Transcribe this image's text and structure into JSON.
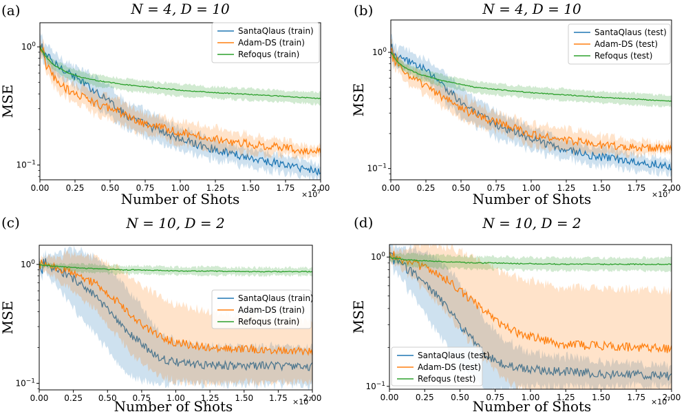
{
  "chart_data": [
    {
      "panel_label": "(a)",
      "type": "line",
      "title": "N = 4, D = 10",
      "xlabel": "Number of Shots",
      "ylabel": "MSE",
      "x_scale_label": "×10",
      "x_scale_exp": "7",
      "xlim": [
        0,
        2.0
      ],
      "ylim": [
        0.075,
        1.6
      ],
      "yscale": "log",
      "x_ticks": [
        "0.00",
        "0.25",
        "0.50",
        "0.75",
        "1.00",
        "1.25",
        "1.50",
        "1.75",
        "2.00"
      ],
      "x_tick_values": [
        0,
        0.25,
        0.5,
        0.75,
        1.0,
        1.25,
        1.5,
        1.75,
        2.0
      ],
      "y_ticks": [
        {
          "value": 1,
          "base": "10",
          "exp": "0"
        },
        {
          "value": 0.1,
          "base": "10",
          "exp": "−1"
        }
      ],
      "legend_position": "top-right",
      "x": [
        0,
        0.05,
        0.1,
        0.2,
        0.3,
        0.4,
        0.5,
        0.6,
        0.75,
        1.0,
        1.25,
        1.5,
        1.75,
        2.0
      ],
      "series": [
        {
          "name": "SantaQlaus (train)",
          "color": "#1f77b4",
          "values": [
            1.0,
            0.85,
            0.72,
            0.62,
            0.5,
            0.42,
            0.35,
            0.27,
            0.22,
            0.165,
            0.135,
            0.115,
            0.1,
            0.088
          ],
          "band": [
            1.25,
            1.2,
            1.25,
            1.2,
            1.25,
            1.35,
            1.35,
            1.3,
            1.3,
            1.25,
            1.2,
            1.2,
            1.18,
            1.15
          ]
        },
        {
          "name": "Adam-DS (train)",
          "color": "#ff7f0e",
          "values": [
            1.0,
            0.7,
            0.55,
            0.43,
            0.38,
            0.33,
            0.3,
            0.27,
            0.22,
            0.19,
            0.165,
            0.15,
            0.14,
            0.128
          ],
          "band": [
            1.2,
            1.15,
            1.2,
            1.2,
            1.2,
            1.25,
            1.25,
            1.25,
            1.2,
            1.25,
            1.25,
            1.2,
            1.15,
            1.1
          ]
        },
        {
          "name": "Refoqus (train)",
          "color": "#2ca02c",
          "values": [
            1.0,
            0.8,
            0.7,
            0.6,
            0.55,
            0.52,
            0.5,
            0.48,
            0.46,
            0.43,
            0.41,
            0.395,
            0.38,
            0.365
          ],
          "band": [
            1.05,
            1.08,
            1.1,
            1.12,
            1.12,
            1.12,
            1.12,
            1.12,
            1.12,
            1.12,
            1.12,
            1.12,
            1.12,
            1.12
          ]
        }
      ]
    },
    {
      "panel_label": "(b)",
      "type": "line",
      "title": "N = 4, D = 10",
      "xlabel": "Number of Shots",
      "ylabel": "MSE",
      "x_scale_label": "×10",
      "x_scale_exp": "7",
      "xlim": [
        0,
        2.0
      ],
      "ylim": [
        0.08,
        1.9
      ],
      "yscale": "log",
      "x_ticks": [
        "0.00",
        "0.25",
        "0.50",
        "0.75",
        "1.00",
        "1.25",
        "1.50",
        "1.75",
        "2.00"
      ],
      "x_tick_values": [
        0,
        0.25,
        0.5,
        0.75,
        1.0,
        1.25,
        1.5,
        1.75,
        2.0
      ],
      "y_ticks": [
        {
          "value": 1,
          "base": "10",
          "exp": "0"
        },
        {
          "value": 0.1,
          "base": "10",
          "exp": "−1"
        }
      ],
      "legend_position": "top-right",
      "x": [
        0,
        0.05,
        0.1,
        0.2,
        0.3,
        0.4,
        0.5,
        0.6,
        0.75,
        1.0,
        1.25,
        1.5,
        1.75,
        2.0
      ],
      "series": [
        {
          "name": "SantaQlaus (test)",
          "color": "#1f77b4",
          "values": [
            1.05,
            0.9,
            0.85,
            0.78,
            0.62,
            0.48,
            0.38,
            0.3,
            0.24,
            0.18,
            0.145,
            0.125,
            0.115,
            0.105
          ],
          "band": [
            1.25,
            1.2,
            1.25,
            1.2,
            1.25,
            1.35,
            1.35,
            1.3,
            1.3,
            1.25,
            1.2,
            1.2,
            1.18,
            1.15
          ]
        },
        {
          "name": "Adam-DS (test)",
          "color": "#ff7f0e",
          "values": [
            1.0,
            0.78,
            0.68,
            0.55,
            0.47,
            0.39,
            0.33,
            0.29,
            0.25,
            0.2,
            0.175,
            0.16,
            0.152,
            0.148
          ],
          "band": [
            1.2,
            1.15,
            1.2,
            1.2,
            1.2,
            1.25,
            1.25,
            1.25,
            1.2,
            1.25,
            1.25,
            1.2,
            1.15,
            1.1
          ]
        },
        {
          "name": "Refoqus (test)",
          "color": "#2ca02c",
          "values": [
            1.0,
            0.82,
            0.74,
            0.65,
            0.6,
            0.56,
            0.53,
            0.5,
            0.48,
            0.45,
            0.43,
            0.41,
            0.395,
            0.38
          ],
          "band": [
            1.05,
            1.08,
            1.1,
            1.12,
            1.12,
            1.12,
            1.12,
            1.12,
            1.12,
            1.12,
            1.12,
            1.12,
            1.12,
            1.12
          ]
        }
      ]
    },
    {
      "panel_label": "(c)",
      "type": "line",
      "title": "N = 10, D = 2",
      "xlabel": "Number of Shots",
      "ylabel": "MSE",
      "x_scale_label": "×10",
      "x_scale_exp": "7",
      "xlim": [
        0,
        2.0
      ],
      "ylim": [
        0.088,
        1.45
      ],
      "yscale": "log",
      "x_ticks": [
        "0.00",
        "0.25",
        "0.50",
        "0.75",
        "1.00",
        "1.25",
        "1.50",
        "1.75",
        "2.00"
      ],
      "x_tick_values": [
        0,
        0.25,
        0.5,
        0.75,
        1.0,
        1.25,
        1.5,
        1.75,
        2.0
      ],
      "y_ticks": [
        {
          "value": 1,
          "base": "10",
          "exp": "0"
        },
        {
          "value": 0.1,
          "base": "10",
          "exp": "−1"
        }
      ],
      "legend_position": "center-right",
      "x": [
        0,
        0.1,
        0.2,
        0.3,
        0.4,
        0.5,
        0.6,
        0.7,
        0.8,
        0.9,
        1.0,
        1.25,
        1.5,
        1.75,
        2.0
      ],
      "series": [
        {
          "name": "SantaQlaus (train)",
          "color": "#1f77b4",
          "values": [
            1.0,
            0.92,
            0.82,
            0.7,
            0.55,
            0.42,
            0.3,
            0.24,
            0.19,
            0.16,
            0.15,
            0.142,
            0.14,
            0.14,
            0.138
          ],
          "band": [
            1.1,
            1.3,
            1.6,
            1.9,
            2.1,
            2.2,
            2.3,
            2.2,
            1.9,
            1.6,
            1.5,
            1.45,
            1.45,
            1.45,
            1.45
          ]
        },
        {
          "name": "Adam-DS (train)",
          "color": "#ff7f0e",
          "values": [
            1.0,
            0.95,
            0.9,
            0.8,
            0.7,
            0.58,
            0.45,
            0.35,
            0.28,
            0.24,
            0.22,
            0.2,
            0.195,
            0.19,
            0.185
          ],
          "band": [
            1.1,
            1.2,
            1.35,
            1.5,
            1.65,
            1.85,
            2.0,
            2.1,
            2.15,
            2.15,
            2.1,
            2.0,
            1.9,
            1.85,
            1.8
          ]
        },
        {
          "name": "Refoqus (train)",
          "color": "#2ca02c",
          "values": [
            1.0,
            0.97,
            0.95,
            0.93,
            0.92,
            0.91,
            0.9,
            0.9,
            0.89,
            0.89,
            0.88,
            0.88,
            0.87,
            0.87,
            0.87
          ],
          "band": [
            1.05,
            1.06,
            1.07,
            1.08,
            1.08,
            1.08,
            1.08,
            1.08,
            1.08,
            1.08,
            1.08,
            1.08,
            1.08,
            1.08,
            1.08
          ]
        }
      ]
    },
    {
      "panel_label": "(d)",
      "type": "line",
      "title": "N = 10, D = 2",
      "xlabel": "Number of Shots",
      "ylabel": "MSE",
      "x_scale_label": "×10",
      "x_scale_exp": "7",
      "xlim": [
        0,
        2.0
      ],
      "ylim": [
        0.095,
        1.25
      ],
      "yscale": "log",
      "x_ticks": [
        "0.00",
        "0.25",
        "0.50",
        "0.75",
        "1.00",
        "1.25",
        "1.50",
        "1.75",
        "2.00"
      ],
      "x_tick_values": [
        0,
        0.25,
        0.5,
        0.75,
        1.0,
        1.25,
        1.5,
        1.75,
        2.0
      ],
      "y_ticks": [
        {
          "value": 1,
          "base": "10",
          "exp": "0"
        },
        {
          "value": 0.1,
          "base": "10",
          "exp": "−1"
        }
      ],
      "legend_position": "bottom-left",
      "x": [
        0,
        0.1,
        0.2,
        0.3,
        0.4,
        0.5,
        0.6,
        0.7,
        0.8,
        0.9,
        1.0,
        1.25,
        1.5,
        1.75,
        2.0
      ],
      "series": [
        {
          "name": "SantaQlaus (test)",
          "color": "#1f77b4",
          "values": [
            1.0,
            0.85,
            0.72,
            0.55,
            0.42,
            0.3,
            0.22,
            0.17,
            0.15,
            0.14,
            0.135,
            0.13,
            0.125,
            0.123,
            0.12
          ],
          "band": [
            1.15,
            1.35,
            1.6,
            1.85,
            2.0,
            2.1,
            2.0,
            1.8,
            1.6,
            1.45,
            1.35,
            1.3,
            1.25,
            1.22,
            1.2
          ]
        },
        {
          "name": "Adam-DS (test)",
          "color": "#ff7f0e",
          "values": [
            1.0,
            0.95,
            0.88,
            0.78,
            0.68,
            0.55,
            0.45,
            0.36,
            0.3,
            0.26,
            0.24,
            0.21,
            0.205,
            0.2,
            0.195
          ],
          "band": [
            1.1,
            1.2,
            1.4,
            1.6,
            1.8,
            2.0,
            2.2,
            2.4,
            2.55,
            2.65,
            2.7,
            2.75,
            2.8,
            2.8,
            2.8
          ]
        },
        {
          "name": "Refoqus (test)",
          "color": "#2ca02c",
          "values": [
            1.0,
            0.96,
            0.94,
            0.93,
            0.92,
            0.91,
            0.9,
            0.9,
            0.9,
            0.89,
            0.89,
            0.88,
            0.88,
            0.88,
            0.88
          ],
          "band": [
            1.08,
            1.1,
            1.12,
            1.12,
            1.12,
            1.12,
            1.12,
            1.12,
            1.12,
            1.12,
            1.12,
            1.12,
            1.12,
            1.12,
            1.12
          ]
        }
      ]
    }
  ]
}
